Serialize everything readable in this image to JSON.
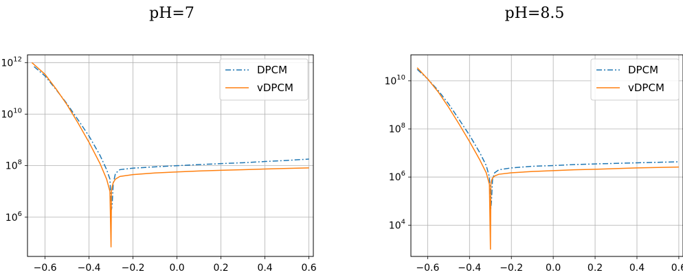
{
  "figure": {
    "panels": [
      {
        "title": "pH=7",
        "legend": [
          {
            "label": "DPCM",
            "color": "#1f77b4",
            "dash": "dashdot"
          },
          {
            "label": "vDPCM",
            "color": "#ff7f0e",
            "dash": "solid"
          }
        ],
        "xticks": [
          "−0.6",
          "−0.4",
          "−0.2",
          "0.0",
          "0.2",
          "0.4",
          "0.6"
        ],
        "yticks": [
          {
            "base": "10",
            "exp": "6"
          },
          {
            "base": "10",
            "exp": "8"
          },
          {
            "base": "10",
            "exp": "10"
          },
          {
            "base": "10",
            "exp": "12"
          }
        ]
      },
      {
        "title": "pH=8.5",
        "legend": [
          {
            "label": "DPCM",
            "color": "#1f77b4",
            "dash": "dashdot"
          },
          {
            "label": "vDPCM",
            "color": "#ff7f0e",
            "dash": "solid"
          }
        ],
        "xticks": [
          "−0.6",
          "−0.4",
          "−0.2",
          "0.0",
          "0.2",
          "0.4",
          "0.6"
        ],
        "yticks": [
          {
            "base": "10",
            "exp": "4"
          },
          {
            "base": "10",
            "exp": "6"
          },
          {
            "base": "10",
            "exp": "8"
          },
          {
            "base": "10",
            "exp": "10"
          }
        ]
      }
    ]
  },
  "chart_data": [
    {
      "type": "line",
      "title": "pH=7",
      "xlabel": "",
      "ylabel": "",
      "yscale": "log",
      "xlim": [
        -0.68,
        0.62
      ],
      "ylim": [
        30000.0,
        2000000000000.0
      ],
      "grid": true,
      "legend_position": "top-right",
      "series": [
        {
          "name": "DPCM",
          "color": "#1f77b4",
          "style": "dashdot",
          "x": [
            -0.65,
            -0.6,
            -0.55,
            -0.5,
            -0.45,
            -0.4,
            -0.35,
            -0.32,
            -0.305,
            -0.298,
            -0.295,
            -0.29,
            -0.28,
            -0.26,
            -0.2,
            -0.1,
            0.0,
            0.1,
            0.2,
            0.3,
            0.4,
            0.5,
            0.6
          ],
          "y": [
            700000000000.0,
            300000000000.0,
            90000000000.0,
            25000000000.0,
            6000000000.0,
            1400000000.0,
            250000000.0,
            70000000.0,
            30000000.0,
            2000000.0,
            3000000.0,
            20000000.0,
            50000000.0,
            70000000.0,
            80000000.0,
            90000000.0,
            100000000.0,
            110000000.0,
            120000000.0,
            130000000.0,
            145000000.0,
            160000000.0,
            180000000.0
          ]
        },
        {
          "name": "vDPCM",
          "color": "#ff7f0e",
          "style": "solid",
          "x": [
            -0.66,
            -0.6,
            -0.55,
            -0.5,
            -0.45,
            -0.4,
            -0.35,
            -0.32,
            -0.305,
            -0.3,
            -0.298,
            -0.295,
            -0.29,
            -0.28,
            -0.26,
            -0.2,
            -0.1,
            0.0,
            0.1,
            0.2,
            0.3,
            0.4,
            0.5,
            0.6
          ],
          "y": [
            1000000000000.0,
            350000000000.0,
            95000000000.0,
            23000000000.0,
            4500000000.0,
            800000000.0,
            120000000.0,
            30000000.0,
            10000000.0,
            70000.0,
            10000000.0,
            15000000.0,
            22000000.0,
            30000000.0,
            38000000.0,
            45000000.0,
            52000000.0,
            57000000.0,
            62000000.0,
            66000000.0,
            70000000.0,
            74000000.0,
            78000000.0,
            82000000.0
          ]
        }
      ]
    },
    {
      "type": "line",
      "title": "pH=8.5",
      "xlabel": "",
      "ylabel": "",
      "yscale": "log",
      "xlim": [
        -0.68,
        0.62
      ],
      "ylim": [
        500.0,
        120000000000.0
      ],
      "grid": true,
      "legend_position": "top-right",
      "series": [
        {
          "name": "DPCM",
          "color": "#1f77b4",
          "style": "dashdot",
          "x": [
            -0.65,
            -0.6,
            -0.55,
            -0.5,
            -0.45,
            -0.4,
            -0.35,
            -0.32,
            -0.305,
            -0.298,
            -0.295,
            -0.29,
            -0.28,
            -0.26,
            -0.2,
            -0.1,
            0.0,
            0.1,
            0.2,
            0.3,
            0.4,
            0.5,
            0.6
          ],
          "y": [
            30000000000.0,
            12000000000.0,
            4000000000.0,
            1100000000.0,
            250000000.0,
            55000000.0,
            10000000.0,
            3000000.0,
            1000000.0,
            50000.0,
            100000.0,
            800000.0,
            1500000.0,
            2000000.0,
            2400000.0,
            2800000.0,
            3000000.0,
            3300000.0,
            3500000.0,
            3700000.0,
            3900000.0,
            4100000.0,
            4300000.0
          ]
        },
        {
          "name": "vDPCM",
          "color": "#ff7f0e",
          "style": "solid",
          "x": [
            -0.65,
            -0.6,
            -0.55,
            -0.5,
            -0.45,
            -0.4,
            -0.35,
            -0.32,
            -0.305,
            -0.3,
            -0.298,
            -0.295,
            -0.29,
            -0.28,
            -0.26,
            -0.2,
            -0.1,
            0.0,
            0.1,
            0.2,
            0.3,
            0.4,
            0.5,
            0.6
          ],
          "y": [
            35000000000.0,
            12000000000.0,
            3500000000.0,
            800000000.0,
            160000000.0,
            30000000.0,
            5000000.0,
            1500000.0,
            500000.0,
            1000.0,
            500000.0,
            700000.0,
            900000.0,
            1100000.0,
            1300000.0,
            1500000.0,
            1700000.0,
            1850000.0,
            2000000.0,
            2100000.0,
            2250000.0,
            2400000.0,
            2500000.0,
            2600000.0
          ]
        }
      ]
    }
  ]
}
